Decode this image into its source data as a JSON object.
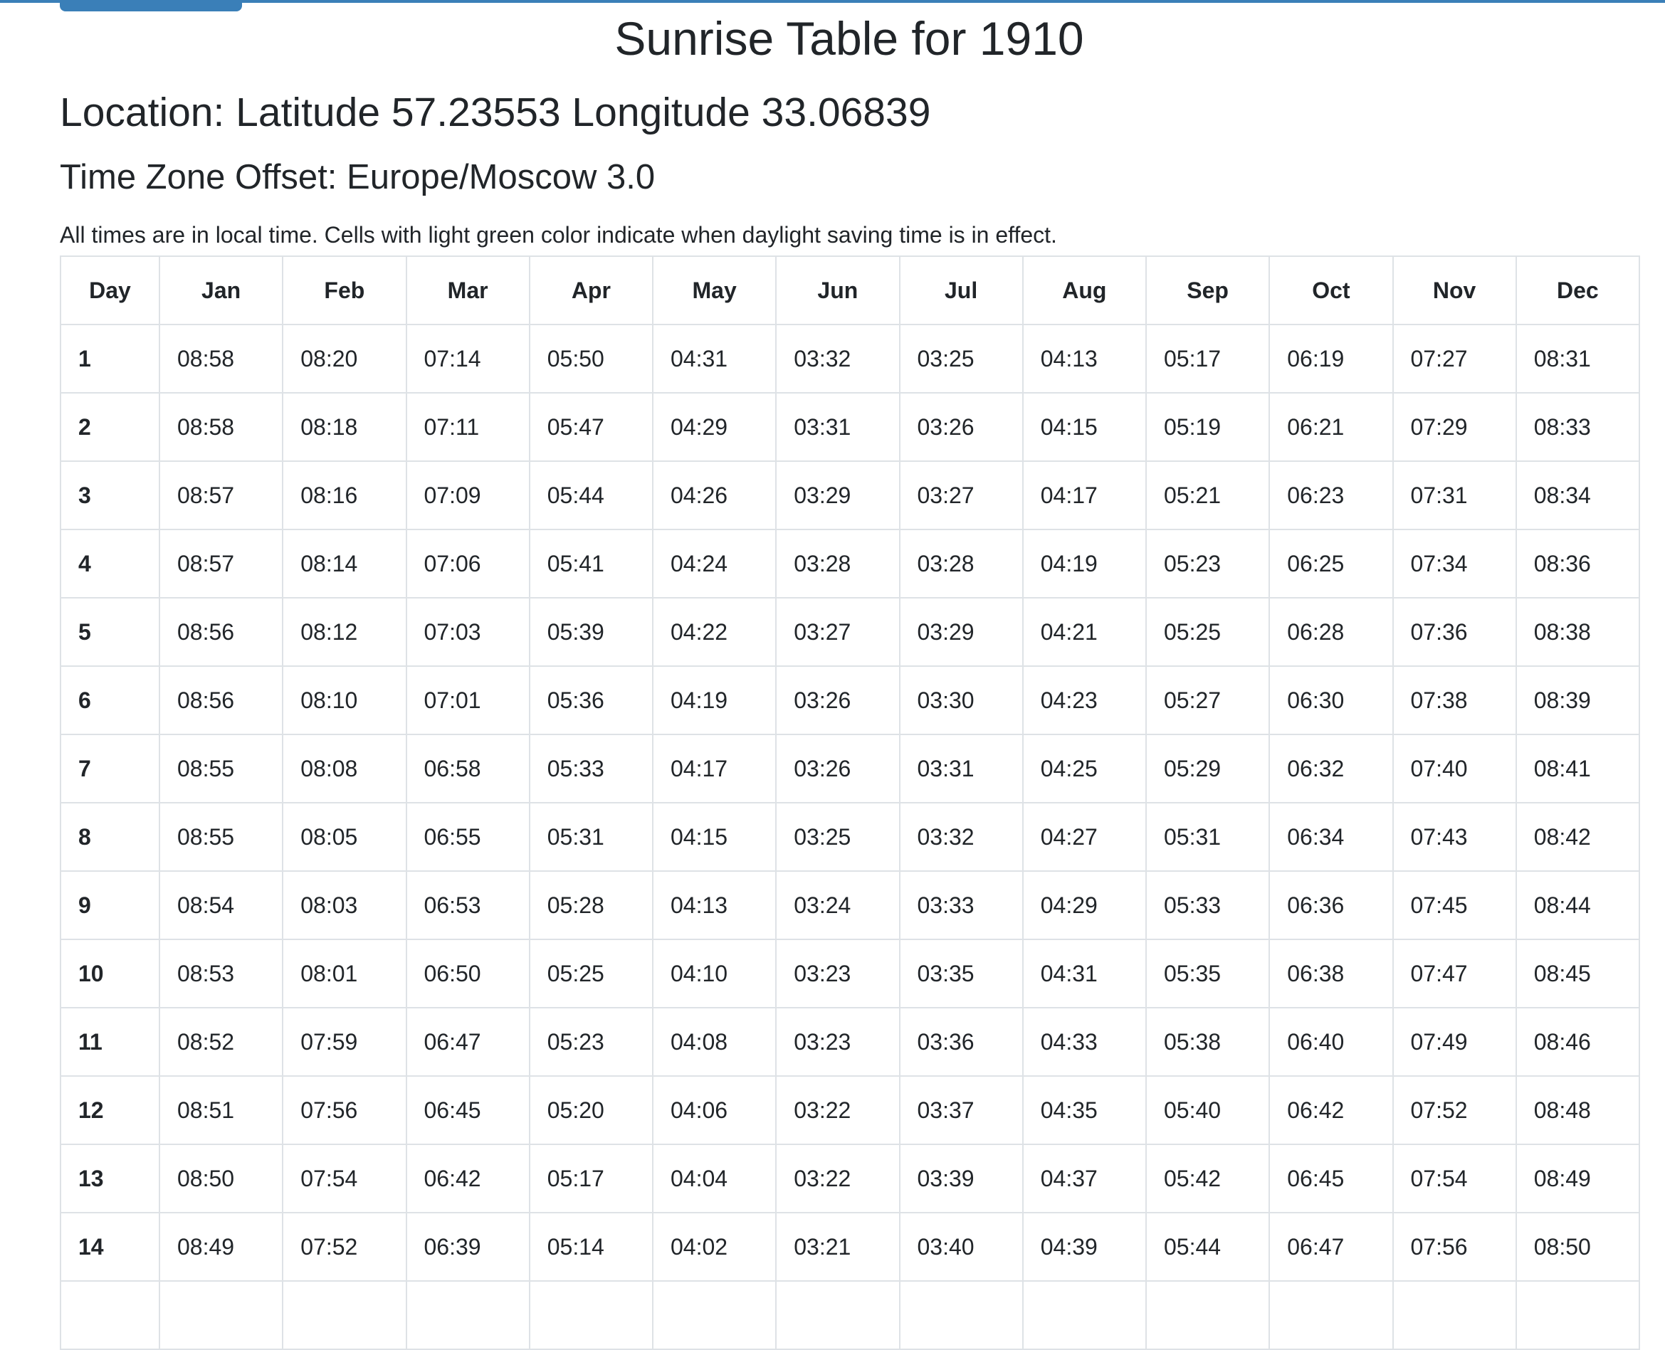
{
  "header": {
    "title": "Sunrise Table for 1910",
    "location": "Location: Latitude 57.23553 Longitude 33.06839",
    "timezone": "Time Zone Offset: Europe/Moscow 3.0",
    "note": "All times are in local time. Cells with light green color indicate when daylight saving time is in effect."
  },
  "colors": {
    "accent": "#3a7fb8",
    "border": "#dee2e6",
    "text": "#212529"
  },
  "table": {
    "columns": [
      "Day",
      "Jan",
      "Feb",
      "Mar",
      "Apr",
      "May",
      "Jun",
      "Jul",
      "Aug",
      "Sep",
      "Oct",
      "Nov",
      "Dec"
    ],
    "rows": [
      [
        "1",
        "08:58",
        "08:20",
        "07:14",
        "05:50",
        "04:31",
        "03:32",
        "03:25",
        "04:13",
        "05:17",
        "06:19",
        "07:27",
        "08:31"
      ],
      [
        "2",
        "08:58",
        "08:18",
        "07:11",
        "05:47",
        "04:29",
        "03:31",
        "03:26",
        "04:15",
        "05:19",
        "06:21",
        "07:29",
        "08:33"
      ],
      [
        "3",
        "08:57",
        "08:16",
        "07:09",
        "05:44",
        "04:26",
        "03:29",
        "03:27",
        "04:17",
        "05:21",
        "06:23",
        "07:31",
        "08:34"
      ],
      [
        "4",
        "08:57",
        "08:14",
        "07:06",
        "05:41",
        "04:24",
        "03:28",
        "03:28",
        "04:19",
        "05:23",
        "06:25",
        "07:34",
        "08:36"
      ],
      [
        "5",
        "08:56",
        "08:12",
        "07:03",
        "05:39",
        "04:22",
        "03:27",
        "03:29",
        "04:21",
        "05:25",
        "06:28",
        "07:36",
        "08:38"
      ],
      [
        "6",
        "08:56",
        "08:10",
        "07:01",
        "05:36",
        "04:19",
        "03:26",
        "03:30",
        "04:23",
        "05:27",
        "06:30",
        "07:38",
        "08:39"
      ],
      [
        "7",
        "08:55",
        "08:08",
        "06:58",
        "05:33",
        "04:17",
        "03:26",
        "03:31",
        "04:25",
        "05:29",
        "06:32",
        "07:40",
        "08:41"
      ],
      [
        "8",
        "08:55",
        "08:05",
        "06:55",
        "05:31",
        "04:15",
        "03:25",
        "03:32",
        "04:27",
        "05:31",
        "06:34",
        "07:43",
        "08:42"
      ],
      [
        "9",
        "08:54",
        "08:03",
        "06:53",
        "05:28",
        "04:13",
        "03:24",
        "03:33",
        "04:29",
        "05:33",
        "06:36",
        "07:45",
        "08:44"
      ],
      [
        "10",
        "08:53",
        "08:01",
        "06:50",
        "05:25",
        "04:10",
        "03:23",
        "03:35",
        "04:31",
        "05:35",
        "06:38",
        "07:47",
        "08:45"
      ],
      [
        "11",
        "08:52",
        "07:59",
        "06:47",
        "05:23",
        "04:08",
        "03:23",
        "03:36",
        "04:33",
        "05:38",
        "06:40",
        "07:49",
        "08:46"
      ],
      [
        "12",
        "08:51",
        "07:56",
        "06:45",
        "05:20",
        "04:06",
        "03:22",
        "03:37",
        "04:35",
        "05:40",
        "06:42",
        "07:52",
        "08:48"
      ],
      [
        "13",
        "08:50",
        "07:54",
        "06:42",
        "05:17",
        "04:04",
        "03:22",
        "03:39",
        "04:37",
        "05:42",
        "06:45",
        "07:54",
        "08:49"
      ],
      [
        "14",
        "08:49",
        "07:52",
        "06:39",
        "05:14",
        "04:02",
        "03:21",
        "03:40",
        "04:39",
        "05:44",
        "06:47",
        "07:56",
        "08:50"
      ],
      [
        "",
        "",
        "",
        "",
        "",
        "",
        "",
        "",
        "",
        "",
        "",
        "",
        ""
      ]
    ]
  }
}
